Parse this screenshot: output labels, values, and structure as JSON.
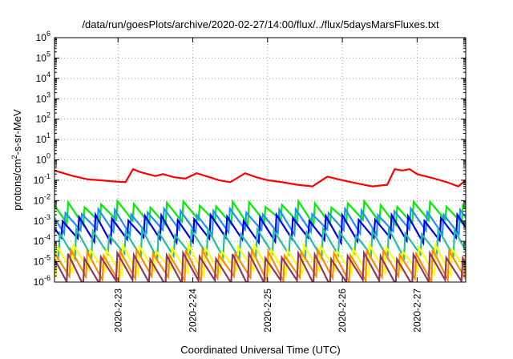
{
  "chart_data": {
    "type": "line",
    "title": "/data/run/goesPlots/archive/2020-02-27/14:00/flux/../flux/5daysMarsFluxes.txt",
    "xlabel": "Coordinated Universal Time (UTC)",
    "ylabel": "protons/cm2-s-sr-MeV",
    "yscale": "log",
    "ylim": [
      1e-06,
      1000000.0
    ],
    "xlim": [
      -0.85,
      4.65
    ],
    "x_ticks": [
      {
        "value": 0,
        "label": "2020-2-23"
      },
      {
        "value": 1,
        "label": "2020-2-24"
      },
      {
        "value": 2,
        "label": "2020-2-25"
      },
      {
        "value": 3,
        "label": "2020-2-26"
      },
      {
        "value": 4,
        "label": "2020-2-27"
      }
    ],
    "y_ticks": [
      {
        "value": 1e-06,
        "base": "10",
        "exp": "-6"
      },
      {
        "value": 1e-05,
        "base": "10",
        "exp": "-5"
      },
      {
        "value": 0.0001,
        "base": "10",
        "exp": "-4"
      },
      {
        "value": 0.001,
        "base": "10",
        "exp": "-3"
      },
      {
        "value": 0.01,
        "base": "10",
        "exp": "-2"
      },
      {
        "value": 0.1,
        "base": "10",
        "exp": "-1"
      },
      {
        "value": 1,
        "base": "10",
        "exp": "0"
      },
      {
        "value": 10,
        "base": "10",
        "exp": "1"
      },
      {
        "value": 100,
        "base": "10",
        "exp": "2"
      },
      {
        "value": 1000,
        "base": "10",
        "exp": "3"
      },
      {
        "value": 10000,
        "base": "10",
        "exp": "4"
      },
      {
        "value": 100000,
        "base": "10",
        "exp": "5"
      },
      {
        "value": 1000000,
        "base": "10",
        "exp": "6"
      }
    ],
    "grid": true,
    "legend": "none",
    "series": [
      {
        "color": "#ff0000",
        "pattern": "zigzag",
        "x": [
          -0.85,
          -0.6,
          -0.4,
          -0.25,
          -0.1,
          0.1,
          0.2,
          0.3,
          0.4,
          0.5,
          0.6,
          0.75,
          0.9,
          1.05,
          1.2,
          1.35,
          1.5,
          1.7,
          1.85,
          2.0,
          2.2,
          2.4,
          2.6,
          2.8,
          3.0,
          3.2,
          3.4,
          3.6,
          3.7,
          3.8,
          3.9,
          4.0,
          4.2,
          4.4,
          4.55,
          4.65
        ],
        "y": [
          0.3,
          0.16,
          0.11,
          0.1,
          0.09,
          0.08,
          0.35,
          0.25,
          0.2,
          0.16,
          0.2,
          0.14,
          0.12,
          0.22,
          0.15,
          0.1,
          0.08,
          0.22,
          0.14,
          0.1,
          0.08,
          0.06,
          0.05,
          0.15,
          0.1,
          0.07,
          0.05,
          0.06,
          0.35,
          0.3,
          0.35,
          0.2,
          0.13,
          0.08,
          0.05,
          0.1
        ]
      },
      {
        "color": "#00ee00",
        "pattern": "sawtooth",
        "peak": 0.007,
        "trough": 0.0009
      },
      {
        "color": "#1e90ff",
        "pattern": "sawtooth",
        "peak": 0.003,
        "trough": 0.0003
      },
      {
        "color": "#0000ee",
        "pattern": "sawtooth",
        "peak": 0.0015,
        "trough": 0.00012
      },
      {
        "color": "#20c0a0",
        "pattern": "sawtooth",
        "peak": 0.0003,
        "trough": 2e-05
      },
      {
        "color": "#ffff00",
        "pattern": "sawtooth",
        "peak": 5e-05,
        "trough": 3e-06
      },
      {
        "color": "#ff8c00",
        "pattern": "sawtooth",
        "peak": 3e-05,
        "trough": 1.5e-06
      },
      {
        "color": "#8b3a62",
        "pattern": "sawtooth",
        "peak": 2e-05,
        "trough": 1e-06
      }
    ]
  }
}
